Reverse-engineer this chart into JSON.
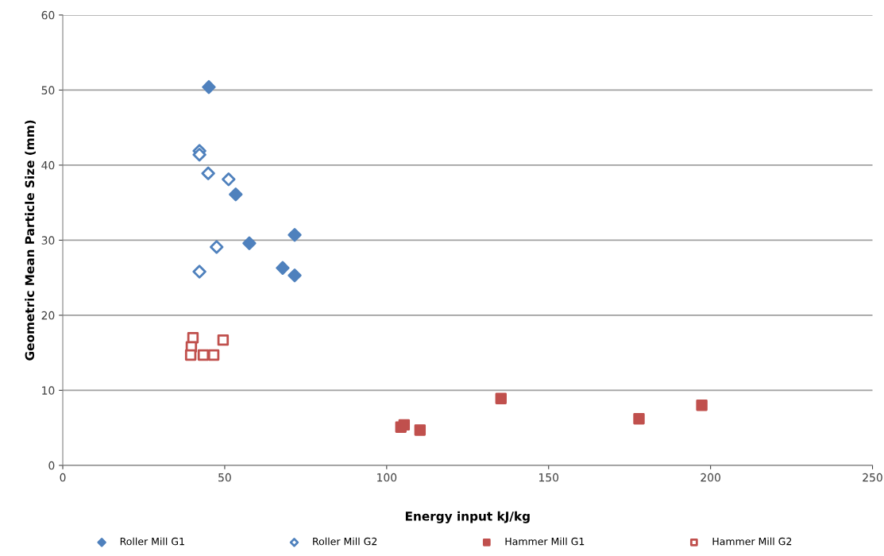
{
  "chart_data": {
    "type": "scatter",
    "xlabel": "Energy input kJ/kg",
    "ylabel": "Geometric Mean Particle Size (mm)",
    "xlim": [
      0,
      250
    ],
    "xticks": [
      0,
      50,
      100,
      150,
      200,
      250
    ],
    "ylim": [
      0,
      60
    ],
    "yticks": [
      0,
      10,
      20,
      30,
      40,
      50,
      60
    ],
    "grid": "y",
    "legend": "bottom",
    "series": [
      {
        "name": "Roller Mill G1",
        "color": "#4f81bd",
        "marker": "diamond",
        "x": [
          45.1,
          53.4,
          57.6,
          71.6,
          67.9,
          71.6
        ],
        "values": [
          50.4,
          36.1,
          29.6,
          30.7,
          26.3,
          25.3
        ]
      },
      {
        "name": "Roller Mill G2",
        "color": "#4f81bd",
        "marker": "diamond",
        "x": [
          42.2,
          42.2,
          44.9,
          51.2,
          47.5,
          42.2
        ],
        "values": [
          41.9,
          41.4,
          38.9,
          38.1,
          29.1,
          25.8
        ]
      },
      {
        "name": "Hammer Mill G1",
        "color": "#c0504d",
        "marker": "square",
        "x": [
          104.4,
          105.4,
          110.3,
          135.3,
          177.9,
          197.3
        ],
        "values": [
          5.1,
          5.4,
          4.7,
          8.9,
          6.2,
          8.0
        ]
      },
      {
        "name": "Hammer Mill G2",
        "color": "#c0504d",
        "marker": "square",
        "x": [
          40.2,
          39.7,
          39.5,
          43.4,
          46.6,
          49.5
        ],
        "values": [
          17.0,
          15.8,
          14.7,
          14.7,
          14.7,
          16.7
        ]
      }
    ]
  }
}
